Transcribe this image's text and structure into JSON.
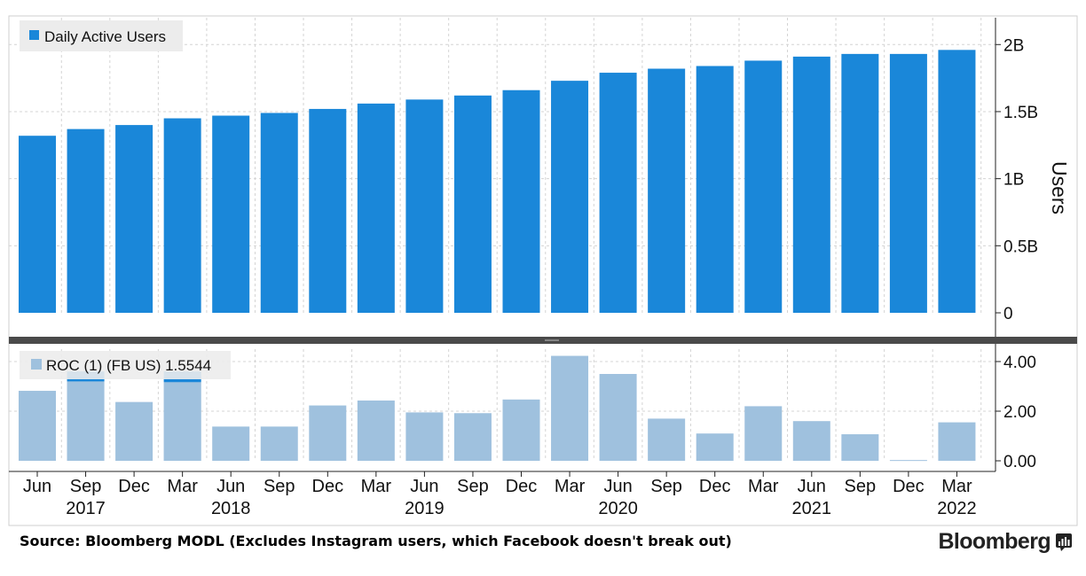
{
  "chart_data": [
    {
      "type": "bar",
      "legend": "Daily Active Users",
      "legend_position": "top-left",
      "ylabel": "Users",
      "y_axis_side": "right",
      "ylim": [
        0,
        2.2
      ],
      "y_ticks": [
        {
          "value": 0,
          "label": "0"
        },
        {
          "value": 0.5,
          "label": "0.5B"
        },
        {
          "value": 1.0,
          "label": "1B"
        },
        {
          "value": 1.5,
          "label": "1.5B"
        },
        {
          "value": 2.0,
          "label": "2B"
        }
      ],
      "grid": true,
      "color": "#1a87d9",
      "series": [
        {
          "name": "Daily Active Users",
          "unit": "billions",
          "values": [
            1.32,
            1.37,
            1.4,
            1.45,
            1.47,
            1.49,
            1.52,
            1.56,
            1.59,
            1.62,
            1.66,
            1.73,
            1.79,
            1.82,
            1.84,
            1.88,
            1.91,
            1.93,
            1.93,
            1.96
          ]
        }
      ]
    },
    {
      "type": "bar",
      "legend": "ROC (1) (FB US) 1.5544",
      "legend_position": "top-left",
      "ylim": [
        0,
        4.5
      ],
      "y_ticks": [
        {
          "value": 0,
          "label": "0.00"
        },
        {
          "value": 2,
          "label": "2.00"
        },
        {
          "value": 4,
          "label": "4.00"
        }
      ],
      "grid": true,
      "color": "#9fc1de",
      "cap_color": "#1a87d9",
      "series": [
        {
          "name": "ROC (1) (FB US)",
          "values": [
            2.82,
            3.6,
            2.37,
            3.6,
            1.38,
            1.38,
            2.23,
            2.43,
            1.95,
            1.92,
            2.47,
            4.23,
            3.5,
            1.7,
            1.1,
            2.2,
            1.6,
            1.07,
            0.03,
            1.55
          ],
          "capped_values": [
            3.2,
            3.17
          ]
        }
      ]
    }
  ],
  "x_axis": {
    "categories": [
      "Jun",
      "Sep",
      "Dec",
      "Mar",
      "Jun",
      "Sep",
      "Dec",
      "Mar",
      "Jun",
      "Sep",
      "Dec",
      "Mar",
      "Jun",
      "Sep",
      "Dec",
      "Mar",
      "Jun",
      "Sep",
      "Dec",
      "Mar"
    ],
    "years": [
      {
        "index": 1,
        "label": "2017"
      },
      {
        "index": 4,
        "label": "2018"
      },
      {
        "index": 8,
        "label": "2019"
      },
      {
        "index": 12,
        "label": "2020"
      },
      {
        "index": 16,
        "label": "2021"
      },
      {
        "index": 19,
        "label": "2022"
      }
    ]
  },
  "footer": {
    "source": "Source: Bloomberg MODL (Excludes Instagram users, which Facebook doesn't break out)",
    "brand": "Bloomberg"
  },
  "icons": {
    "brand_icon": "bloomberg-terminal-icon"
  }
}
